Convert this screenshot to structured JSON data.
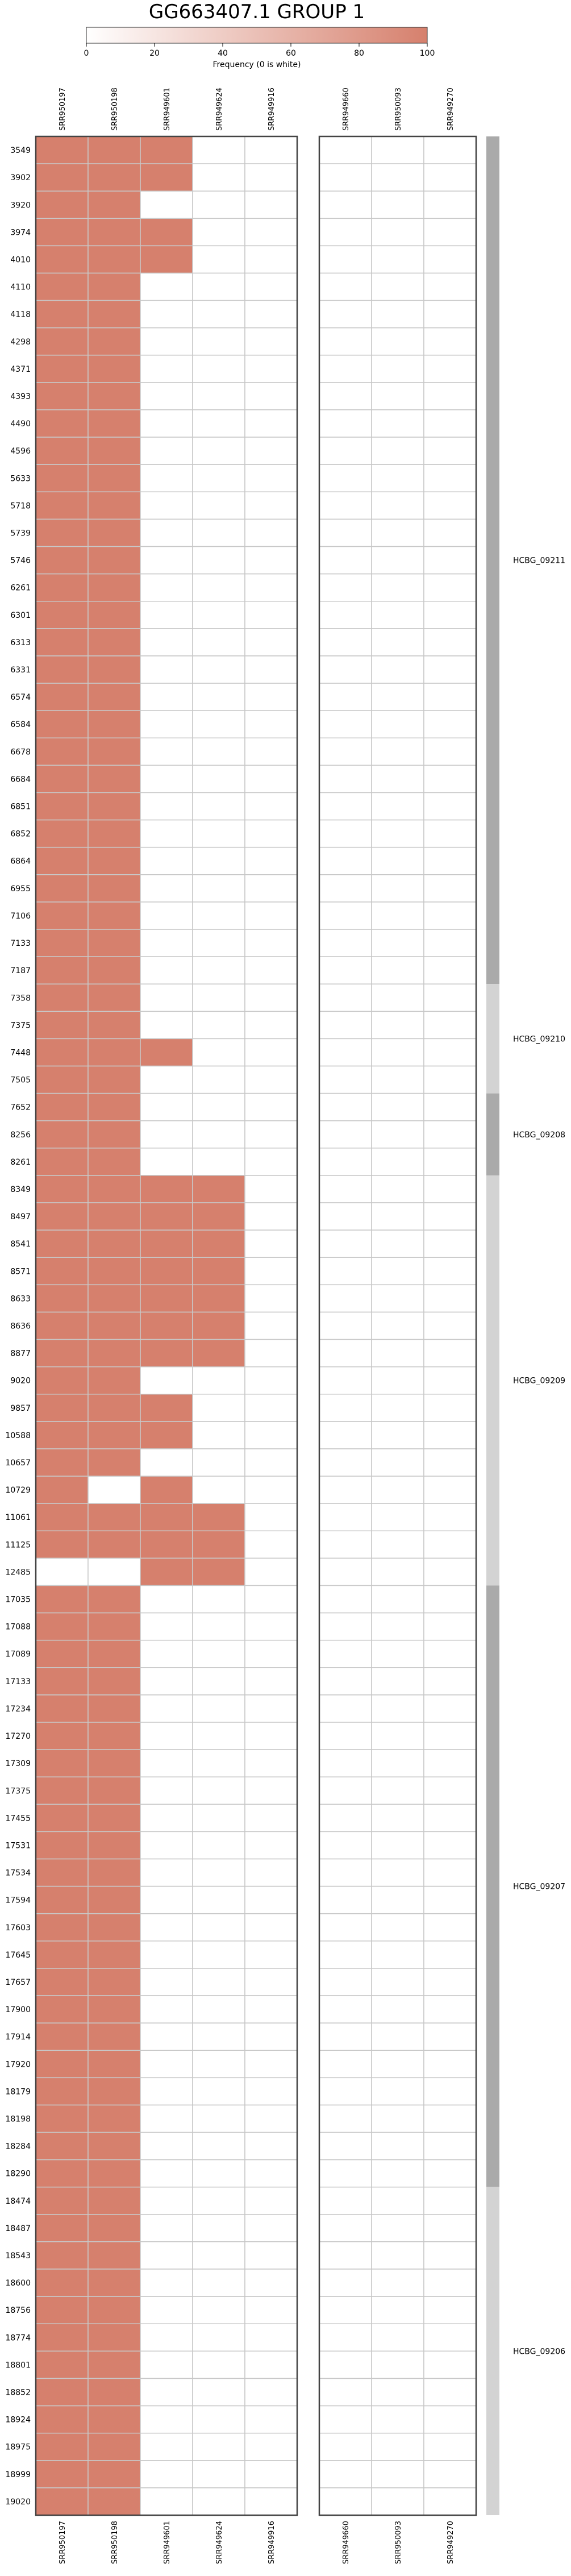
{
  "chart_data": {
    "type": "heatmap",
    "title": "GG663407.1 GROUP 1",
    "colorbar": {
      "label": "Frequency (0 is white)",
      "ticks": [
        0,
        20,
        40,
        60,
        80,
        100
      ],
      "min": 0,
      "max": 100,
      "color_low": "#ffffff",
      "color_high": "#d6806d"
    },
    "colors": {
      "cell_filled": "#d6806d",
      "cell_empty": "#ffffff",
      "cell_border": "#c8c8c8",
      "frame": "#444444",
      "gene_band_dark": "#aaaaaa",
      "gene_band_light": "#d3d3d3"
    },
    "left_panel_columns": [
      "SRR950197",
      "SRR950198",
      "SRR949601",
      "SRR949624",
      "SRR949916"
    ],
    "right_panel_columns": [
      "SRR949660",
      "SRR950093",
      "SRR949270"
    ],
    "rows": [
      {
        "pos": "3549",
        "left": [
          100,
          100,
          100,
          0,
          0
        ],
        "right": [
          0,
          0,
          0
        ]
      },
      {
        "pos": "3902",
        "left": [
          100,
          100,
          100,
          0,
          0
        ],
        "right": [
          0,
          0,
          0
        ]
      },
      {
        "pos": "3920",
        "left": [
          100,
          100,
          0,
          0,
          0
        ],
        "right": [
          0,
          0,
          0
        ]
      },
      {
        "pos": "3974",
        "left": [
          100,
          100,
          100,
          0,
          0
        ],
        "right": [
          0,
          0,
          0
        ]
      },
      {
        "pos": "4010",
        "left": [
          100,
          100,
          100,
          0,
          0
        ],
        "right": [
          0,
          0,
          0
        ]
      },
      {
        "pos": "4110",
        "left": [
          100,
          100,
          0,
          0,
          0
        ],
        "right": [
          0,
          0,
          0
        ]
      },
      {
        "pos": "4118",
        "left": [
          100,
          100,
          0,
          0,
          0
        ],
        "right": [
          0,
          0,
          0
        ]
      },
      {
        "pos": "4298",
        "left": [
          100,
          100,
          0,
          0,
          0
        ],
        "right": [
          0,
          0,
          0
        ]
      },
      {
        "pos": "4371",
        "left": [
          100,
          100,
          0,
          0,
          0
        ],
        "right": [
          0,
          0,
          0
        ]
      },
      {
        "pos": "4393",
        "left": [
          100,
          100,
          0,
          0,
          0
        ],
        "right": [
          0,
          0,
          0
        ]
      },
      {
        "pos": "4490",
        "left": [
          100,
          100,
          0,
          0,
          0
        ],
        "right": [
          0,
          0,
          0
        ]
      },
      {
        "pos": "4596",
        "left": [
          100,
          100,
          0,
          0,
          0
        ],
        "right": [
          0,
          0,
          0
        ]
      },
      {
        "pos": "5633",
        "left": [
          100,
          100,
          0,
          0,
          0
        ],
        "right": [
          0,
          0,
          0
        ]
      },
      {
        "pos": "5718",
        "left": [
          100,
          100,
          0,
          0,
          0
        ],
        "right": [
          0,
          0,
          0
        ]
      },
      {
        "pos": "5739",
        "left": [
          100,
          100,
          0,
          0,
          0
        ],
        "right": [
          0,
          0,
          0
        ]
      },
      {
        "pos": "5746",
        "left": [
          100,
          100,
          0,
          0,
          0
        ],
        "right": [
          0,
          0,
          0
        ]
      },
      {
        "pos": "6261",
        "left": [
          100,
          100,
          0,
          0,
          0
        ],
        "right": [
          0,
          0,
          0
        ]
      },
      {
        "pos": "6301",
        "left": [
          100,
          100,
          0,
          0,
          0
        ],
        "right": [
          0,
          0,
          0
        ]
      },
      {
        "pos": "6313",
        "left": [
          100,
          100,
          0,
          0,
          0
        ],
        "right": [
          0,
          0,
          0
        ]
      },
      {
        "pos": "6331",
        "left": [
          100,
          100,
          0,
          0,
          0
        ],
        "right": [
          0,
          0,
          0
        ]
      },
      {
        "pos": "6574",
        "left": [
          100,
          100,
          0,
          0,
          0
        ],
        "right": [
          0,
          0,
          0
        ]
      },
      {
        "pos": "6584",
        "left": [
          100,
          100,
          0,
          0,
          0
        ],
        "right": [
          0,
          0,
          0
        ]
      },
      {
        "pos": "6678",
        "left": [
          100,
          100,
          0,
          0,
          0
        ],
        "right": [
          0,
          0,
          0
        ]
      },
      {
        "pos": "6684",
        "left": [
          100,
          100,
          0,
          0,
          0
        ],
        "right": [
          0,
          0,
          0
        ]
      },
      {
        "pos": "6851",
        "left": [
          100,
          100,
          0,
          0,
          0
        ],
        "right": [
          0,
          0,
          0
        ]
      },
      {
        "pos": "6852",
        "left": [
          100,
          100,
          0,
          0,
          0
        ],
        "right": [
          0,
          0,
          0
        ]
      },
      {
        "pos": "6864",
        "left": [
          100,
          100,
          0,
          0,
          0
        ],
        "right": [
          0,
          0,
          0
        ]
      },
      {
        "pos": "6955",
        "left": [
          100,
          100,
          0,
          0,
          0
        ],
        "right": [
          0,
          0,
          0
        ]
      },
      {
        "pos": "7106",
        "left": [
          100,
          100,
          0,
          0,
          0
        ],
        "right": [
          0,
          0,
          0
        ]
      },
      {
        "pos": "7133",
        "left": [
          100,
          100,
          0,
          0,
          0
        ],
        "right": [
          0,
          0,
          0
        ]
      },
      {
        "pos": "7187",
        "left": [
          100,
          100,
          0,
          0,
          0
        ],
        "right": [
          0,
          0,
          0
        ]
      },
      {
        "pos": "7358",
        "left": [
          100,
          100,
          0,
          0,
          0
        ],
        "right": [
          0,
          0,
          0
        ]
      },
      {
        "pos": "7375",
        "left": [
          100,
          100,
          0,
          0,
          0
        ],
        "right": [
          0,
          0,
          0
        ]
      },
      {
        "pos": "7448",
        "left": [
          100,
          100,
          100,
          0,
          0
        ],
        "right": [
          0,
          0,
          0
        ]
      },
      {
        "pos": "7505",
        "left": [
          100,
          100,
          0,
          0,
          0
        ],
        "right": [
          0,
          0,
          0
        ]
      },
      {
        "pos": "7652",
        "left": [
          100,
          100,
          0,
          0,
          0
        ],
        "right": [
          0,
          0,
          0
        ]
      },
      {
        "pos": "8256",
        "left": [
          100,
          100,
          0,
          0,
          0
        ],
        "right": [
          0,
          0,
          0
        ]
      },
      {
        "pos": "8261",
        "left": [
          100,
          100,
          0,
          0,
          0
        ],
        "right": [
          0,
          0,
          0
        ]
      },
      {
        "pos": "8349",
        "left": [
          100,
          100,
          100,
          100,
          0
        ],
        "right": [
          0,
          0,
          0
        ]
      },
      {
        "pos": "8497",
        "left": [
          100,
          100,
          100,
          100,
          0
        ],
        "right": [
          0,
          0,
          0
        ]
      },
      {
        "pos": "8541",
        "left": [
          100,
          100,
          100,
          100,
          0
        ],
        "right": [
          0,
          0,
          0
        ]
      },
      {
        "pos": "8571",
        "left": [
          100,
          100,
          100,
          100,
          0
        ],
        "right": [
          0,
          0,
          0
        ]
      },
      {
        "pos": "8633",
        "left": [
          100,
          100,
          100,
          100,
          0
        ],
        "right": [
          0,
          0,
          0
        ]
      },
      {
        "pos": "8636",
        "left": [
          100,
          100,
          100,
          100,
          0
        ],
        "right": [
          0,
          0,
          0
        ]
      },
      {
        "pos": "8877",
        "left": [
          100,
          100,
          100,
          100,
          0
        ],
        "right": [
          0,
          0,
          0
        ]
      },
      {
        "pos": "9020",
        "left": [
          100,
          100,
          0,
          0,
          0
        ],
        "right": [
          0,
          0,
          0
        ]
      },
      {
        "pos": "9857",
        "left": [
          100,
          100,
          100,
          0,
          0
        ],
        "right": [
          0,
          0,
          0
        ]
      },
      {
        "pos": "10588",
        "left": [
          100,
          100,
          100,
          0,
          0
        ],
        "right": [
          0,
          0,
          0
        ]
      },
      {
        "pos": "10657",
        "left": [
          100,
          100,
          0,
          0,
          0
        ],
        "right": [
          0,
          0,
          0
        ]
      },
      {
        "pos": "10729",
        "left": [
          100,
          0,
          100,
          0,
          0
        ],
        "right": [
          0,
          0,
          0
        ]
      },
      {
        "pos": "11061",
        "left": [
          100,
          100,
          100,
          100,
          0
        ],
        "right": [
          0,
          0,
          0
        ]
      },
      {
        "pos": "11125",
        "left": [
          100,
          100,
          100,
          100,
          0
        ],
        "right": [
          0,
          0,
          0
        ]
      },
      {
        "pos": "12485",
        "left": [
          0,
          0,
          100,
          100,
          0
        ],
        "right": [
          0,
          0,
          0
        ]
      },
      {
        "pos": "17035",
        "left": [
          100,
          100,
          0,
          0,
          0
        ],
        "right": [
          0,
          0,
          0
        ]
      },
      {
        "pos": "17088",
        "left": [
          100,
          100,
          0,
          0,
          0
        ],
        "right": [
          0,
          0,
          0
        ]
      },
      {
        "pos": "17089",
        "left": [
          100,
          100,
          0,
          0,
          0
        ],
        "right": [
          0,
          0,
          0
        ]
      },
      {
        "pos": "17133",
        "left": [
          100,
          100,
          0,
          0,
          0
        ],
        "right": [
          0,
          0,
          0
        ]
      },
      {
        "pos": "17234",
        "left": [
          100,
          100,
          0,
          0,
          0
        ],
        "right": [
          0,
          0,
          0
        ]
      },
      {
        "pos": "17270",
        "left": [
          100,
          100,
          0,
          0,
          0
        ],
        "right": [
          0,
          0,
          0
        ]
      },
      {
        "pos": "17309",
        "left": [
          100,
          100,
          0,
          0,
          0
        ],
        "right": [
          0,
          0,
          0
        ]
      },
      {
        "pos": "17375",
        "left": [
          100,
          100,
          0,
          0,
          0
        ],
        "right": [
          0,
          0,
          0
        ]
      },
      {
        "pos": "17455",
        "left": [
          100,
          100,
          0,
          0,
          0
        ],
        "right": [
          0,
          0,
          0
        ]
      },
      {
        "pos": "17531",
        "left": [
          100,
          100,
          0,
          0,
          0
        ],
        "right": [
          0,
          0,
          0
        ]
      },
      {
        "pos": "17534",
        "left": [
          100,
          100,
          0,
          0,
          0
        ],
        "right": [
          0,
          0,
          0
        ]
      },
      {
        "pos": "17594",
        "left": [
          100,
          100,
          0,
          0,
          0
        ],
        "right": [
          0,
          0,
          0
        ]
      },
      {
        "pos": "17603",
        "left": [
          100,
          100,
          0,
          0,
          0
        ],
        "right": [
          0,
          0,
          0
        ]
      },
      {
        "pos": "17645",
        "left": [
          100,
          100,
          0,
          0,
          0
        ],
        "right": [
          0,
          0,
          0
        ]
      },
      {
        "pos": "17657",
        "left": [
          100,
          100,
          0,
          0,
          0
        ],
        "right": [
          0,
          0,
          0
        ]
      },
      {
        "pos": "17900",
        "left": [
          100,
          100,
          0,
          0,
          0
        ],
        "right": [
          0,
          0,
          0
        ]
      },
      {
        "pos": "17914",
        "left": [
          100,
          100,
          0,
          0,
          0
        ],
        "right": [
          0,
          0,
          0
        ]
      },
      {
        "pos": "17920",
        "left": [
          100,
          100,
          0,
          0,
          0
        ],
        "right": [
          0,
          0,
          0
        ]
      },
      {
        "pos": "18179",
        "left": [
          100,
          100,
          0,
          0,
          0
        ],
        "right": [
          0,
          0,
          0
        ]
      },
      {
        "pos": "18198",
        "left": [
          100,
          100,
          0,
          0,
          0
        ],
        "right": [
          0,
          0,
          0
        ]
      },
      {
        "pos": "18284",
        "left": [
          100,
          100,
          0,
          0,
          0
        ],
        "right": [
          0,
          0,
          0
        ]
      },
      {
        "pos": "18290",
        "left": [
          100,
          100,
          0,
          0,
          0
        ],
        "right": [
          0,
          0,
          0
        ]
      },
      {
        "pos": "18474",
        "left": [
          100,
          100,
          0,
          0,
          0
        ],
        "right": [
          0,
          0,
          0
        ]
      },
      {
        "pos": "18487",
        "left": [
          100,
          100,
          0,
          0,
          0
        ],
        "right": [
          0,
          0,
          0
        ]
      },
      {
        "pos": "18543",
        "left": [
          100,
          100,
          0,
          0,
          0
        ],
        "right": [
          0,
          0,
          0
        ]
      },
      {
        "pos": "18600",
        "left": [
          100,
          100,
          0,
          0,
          0
        ],
        "right": [
          0,
          0,
          0
        ]
      },
      {
        "pos": "18756",
        "left": [
          100,
          100,
          0,
          0,
          0
        ],
        "right": [
          0,
          0,
          0
        ]
      },
      {
        "pos": "18774",
        "left": [
          100,
          100,
          0,
          0,
          0
        ],
        "right": [
          0,
          0,
          0
        ]
      },
      {
        "pos": "18801",
        "left": [
          100,
          100,
          0,
          0,
          0
        ],
        "right": [
          0,
          0,
          0
        ]
      },
      {
        "pos": "18852",
        "left": [
          100,
          100,
          0,
          0,
          0
        ],
        "right": [
          0,
          0,
          0
        ]
      },
      {
        "pos": "18924",
        "left": [
          100,
          100,
          0,
          0,
          0
        ],
        "right": [
          0,
          0,
          0
        ]
      },
      {
        "pos": "18975",
        "left": [
          100,
          100,
          0,
          0,
          0
        ],
        "right": [
          0,
          0,
          0
        ]
      },
      {
        "pos": "18999",
        "left": [
          100,
          100,
          0,
          0,
          0
        ],
        "right": [
          0,
          0,
          0
        ]
      },
      {
        "pos": "19020",
        "left": [
          100,
          100,
          0,
          0,
          0
        ],
        "right": [
          0,
          0,
          0
        ]
      }
    ],
    "gene_bands": [
      {
        "label": "HCBG_09211",
        "first_pos": "3549",
        "last_pos": "7187",
        "shade": "dark"
      },
      {
        "label": "HCBG_09210",
        "first_pos": "7358",
        "last_pos": "7505",
        "shade": "light"
      },
      {
        "label": "HCBG_09208",
        "first_pos": "7652",
        "last_pos": "8261",
        "shade": "dark"
      },
      {
        "label": "HCBG_09209",
        "first_pos": "8349",
        "last_pos": "12485",
        "shade": "light"
      },
      {
        "label": "HCBG_09207",
        "first_pos": "17035",
        "last_pos": "18290",
        "shade": "dark"
      },
      {
        "label": "HCBG_09206",
        "first_pos": "18474",
        "last_pos": "19020",
        "shade": "light"
      }
    ]
  }
}
